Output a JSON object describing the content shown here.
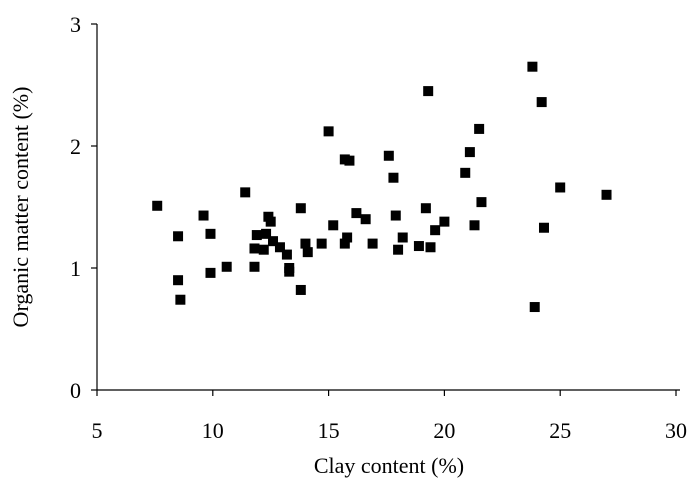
{
  "chart_data": {
    "type": "scatter",
    "title": "",
    "xlabel": "Clay content (%)",
    "ylabel": "Organic matter content (%)",
    "xlim": [
      5,
      30
    ],
    "ylim": [
      0,
      3
    ],
    "xticks": [
      5,
      10,
      15,
      20,
      25,
      30
    ],
    "yticks": [
      0,
      1,
      2,
      3
    ],
    "grid": false,
    "legend": "none",
    "marker": "square",
    "color": "#000000",
    "points": [
      [
        7.6,
        1.51
      ],
      [
        8.5,
        1.26
      ],
      [
        8.5,
        0.9
      ],
      [
        8.6,
        0.74
      ],
      [
        9.6,
        1.43
      ],
      [
        9.9,
        1.28
      ],
      [
        9.9,
        0.96
      ],
      [
        10.6,
        1.01
      ],
      [
        11.4,
        1.62
      ],
      [
        11.8,
        1.16
      ],
      [
        11.8,
        1.01
      ],
      [
        11.9,
        1.27
      ],
      [
        12.2,
        1.15
      ],
      [
        12.3,
        1.28
      ],
      [
        12.4,
        1.42
      ],
      [
        12.5,
        1.38
      ],
      [
        12.6,
        1.22
      ],
      [
        12.9,
        1.17
      ],
      [
        13.2,
        1.11
      ],
      [
        13.3,
        1.0
      ],
      [
        13.3,
        0.97
      ],
      [
        13.8,
        1.49
      ],
      [
        13.8,
        0.82
      ],
      [
        14.0,
        1.2
      ],
      [
        14.1,
        1.13
      ],
      [
        14.7,
        1.2
      ],
      [
        15.0,
        2.12
      ],
      [
        15.2,
        1.35
      ],
      [
        15.7,
        1.89
      ],
      [
        15.7,
        1.2
      ],
      [
        15.8,
        1.25
      ],
      [
        15.9,
        1.88
      ],
      [
        16.2,
        1.45
      ],
      [
        16.6,
        1.4
      ],
      [
        16.9,
        1.2
      ],
      [
        17.6,
        1.92
      ],
      [
        17.8,
        1.74
      ],
      [
        17.9,
        1.43
      ],
      [
        18.0,
        1.15
      ],
      [
        18.2,
        1.25
      ],
      [
        18.9,
        1.18
      ],
      [
        19.2,
        1.49
      ],
      [
        19.3,
        2.45
      ],
      [
        19.4,
        1.17
      ],
      [
        19.6,
        1.31
      ],
      [
        20.0,
        1.38
      ],
      [
        20.9,
        1.78
      ],
      [
        21.1,
        1.95
      ],
      [
        21.3,
        1.35
      ],
      [
        21.5,
        2.14
      ],
      [
        21.6,
        1.54
      ],
      [
        23.8,
        2.65
      ],
      [
        23.9,
        0.68
      ],
      [
        24.2,
        2.36
      ],
      [
        24.3,
        1.33
      ],
      [
        25.0,
        1.66
      ],
      [
        27.0,
        1.6
      ]
    ]
  }
}
